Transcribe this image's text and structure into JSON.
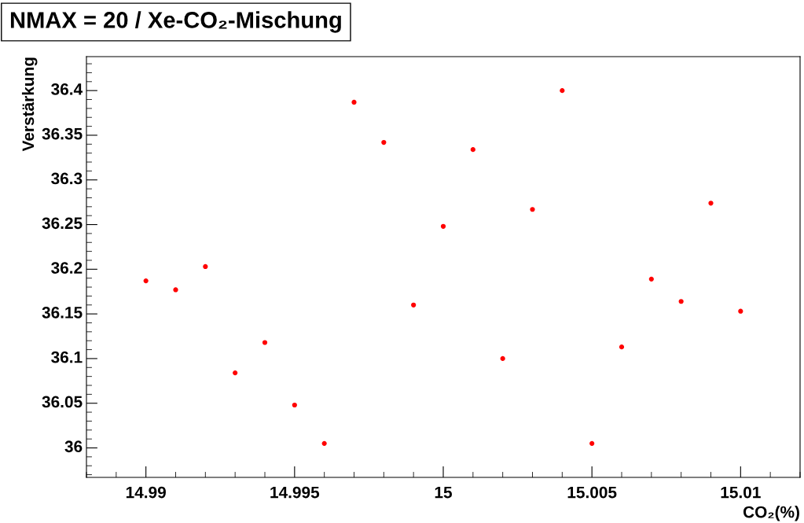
{
  "chart_data": {
    "type": "scatter",
    "title": "NMAX = 20 / Xe-CO₂-Mischung",
    "xlabel": "CO₂(%)",
    "ylabel": "Verstärkung",
    "x": [
      14.99,
      14.991,
      14.992,
      14.993,
      14.994,
      14.995,
      14.996,
      14.997,
      14.998,
      14.999,
      15.0,
      15.001,
      15.002,
      15.003,
      15.004,
      15.005,
      15.006,
      15.007,
      15.008,
      15.009,
      15.01
    ],
    "series": [
      {
        "color": "#ff0000",
        "values": [
          36.187,
          36.177,
          36.203,
          36.084,
          36.118,
          36.048,
          36.005,
          36.387,
          36.342,
          36.16,
          36.248,
          36.334,
          36.1,
          36.267,
          36.4,
          36.005,
          36.113,
          36.189,
          36.164,
          36.274,
          36.153
        ]
      }
    ],
    "xlim": [
      14.988,
      15.012
    ],
    "ylim": [
      35.967,
      36.438
    ],
    "xticks": [
      14.99,
      14.995,
      15,
      15.005,
      15.01
    ],
    "yticks": [
      36,
      36.05,
      36.1,
      36.15,
      36.2,
      36.25,
      36.3,
      36.35,
      36.4
    ],
    "marker": "circle",
    "grid": false,
    "legend": false
  }
}
